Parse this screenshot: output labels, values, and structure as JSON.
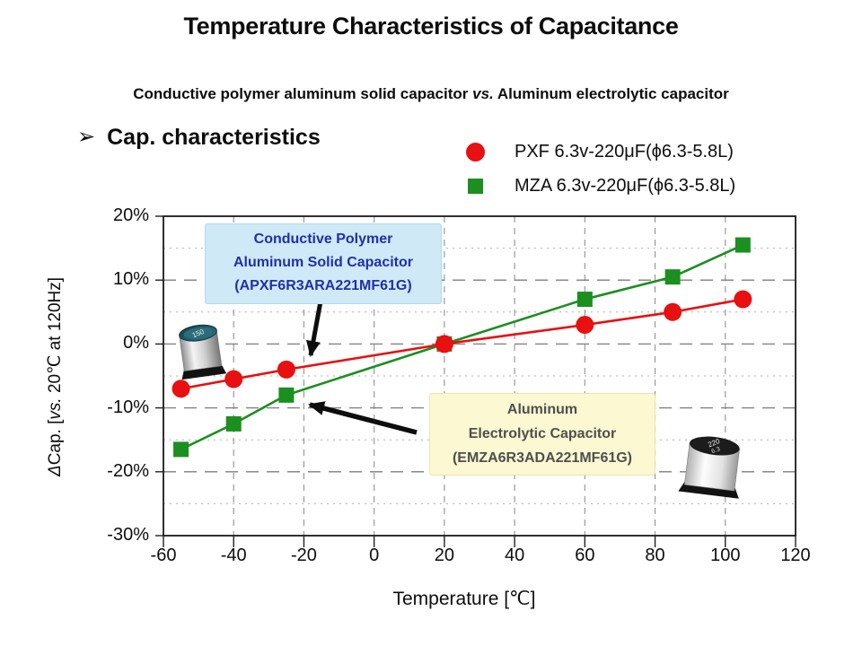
{
  "title": "Temperature Characteristics of Capacitance",
  "subtitle": {
    "pre": "Conductive polymer aluminum solid capacitor ",
    "vs": "vs.",
    "post": " Aluminum electrolytic capacitor"
  },
  "section": {
    "bullet": "➢",
    "label": "Cap. characteristics"
  },
  "legend": [
    {
      "marker": "circle",
      "color": "#e81010",
      "label": "PXF 6.3v-220μF(ϕ6.3-5.8L)"
    },
    {
      "marker": "square",
      "color": "#1b8f1f",
      "label": "MZA 6.3v-220μF(ϕ6.3-5.8L)"
    }
  ],
  "annotations": {
    "polymer": {
      "lines": [
        "Conductive Polymer",
        "Aluminum Solid Capacitor",
        "(APXF6R3ARA221MF61G)"
      ],
      "bg": "#cfe9f7",
      "color": "#2130a8"
    },
    "electrolytic": {
      "lines": [
        "Aluminum",
        "Electrolytic Capacitor",
        "(EMZA6R3ADA221MF61G)"
      ],
      "bg": "#fcf8d2",
      "color": "#4f4f4f"
    }
  },
  "ylabel_parts": {
    "delta": "Δ",
    "pre": "Cap. [",
    "vs": "vs.",
    "post": " 20℃ at 120Hz]"
  },
  "chart_data": {
    "type": "line",
    "x": [
      -55,
      -40,
      -25,
      20,
      60,
      85,
      105
    ],
    "series": [
      {
        "name": "PXF 6.3v-220μF(ϕ6.3-5.8L)",
        "color": "#e81010",
        "marker": "circle",
        "values": [
          -7,
          -5.5,
          -4,
          0,
          3,
          5,
          7
        ]
      },
      {
        "name": "MZA 6.3v-220μF(ϕ6.3-5.8L)",
        "color": "#1b8f1f",
        "marker": "square",
        "values": [
          -16.5,
          -12.5,
          -8,
          0,
          7,
          10.5,
          15.5
        ]
      }
    ],
    "title": "Temperature Characteristics of Capacitance",
    "xlabel": "Temperature [℃]",
    "ylabel": "ΔCap. [vs. 20℃ at 120Hz]",
    "xlim": [
      -60,
      120
    ],
    "ylim": [
      -30,
      20
    ],
    "x_ticks": [
      -60,
      -40,
      -20,
      0,
      20,
      40,
      60,
      80,
      100,
      120
    ],
    "y_ticks": [
      20,
      10,
      0,
      -10,
      -20,
      -30
    ],
    "y_minor_ticks": [
      15,
      5,
      -5,
      -15,
      -25
    ],
    "grid": true,
    "legend_position": "top-right"
  }
}
